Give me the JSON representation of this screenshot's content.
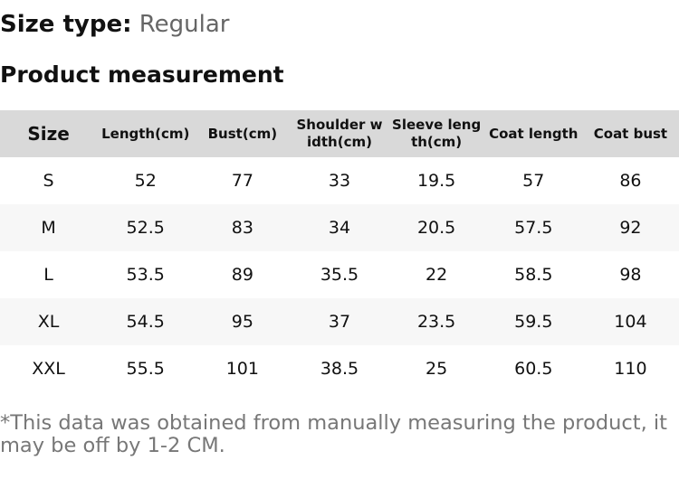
{
  "header": {
    "size_type_label": "Size type:",
    "size_type_value": "Regular",
    "title": "Product measurement"
  },
  "table": {
    "columns": [
      "Size",
      "Length(cm)",
      "Bust(cm)",
      "Shoulder width(cm)",
      "Sleeve length(cm)",
      "Coat length",
      "Coat bust"
    ],
    "rows": [
      [
        "S",
        "52",
        "77",
        "33",
        "19.5",
        "57",
        "86"
      ],
      [
        "M",
        "52.5",
        "83",
        "34",
        "20.5",
        "57.5",
        "92"
      ],
      [
        "L",
        "53.5",
        "89",
        "35.5",
        "22",
        "58.5",
        "98"
      ],
      [
        "XL",
        "54.5",
        "95",
        "37",
        "23.5",
        "59.5",
        "104"
      ],
      [
        "XXL",
        "55.5",
        "101",
        "38.5",
        "25",
        "60.5",
        "110"
      ]
    ]
  },
  "footer": {
    "note": "*This data was obtained from manually measuring the product, it may be off by 1-2 CM."
  }
}
